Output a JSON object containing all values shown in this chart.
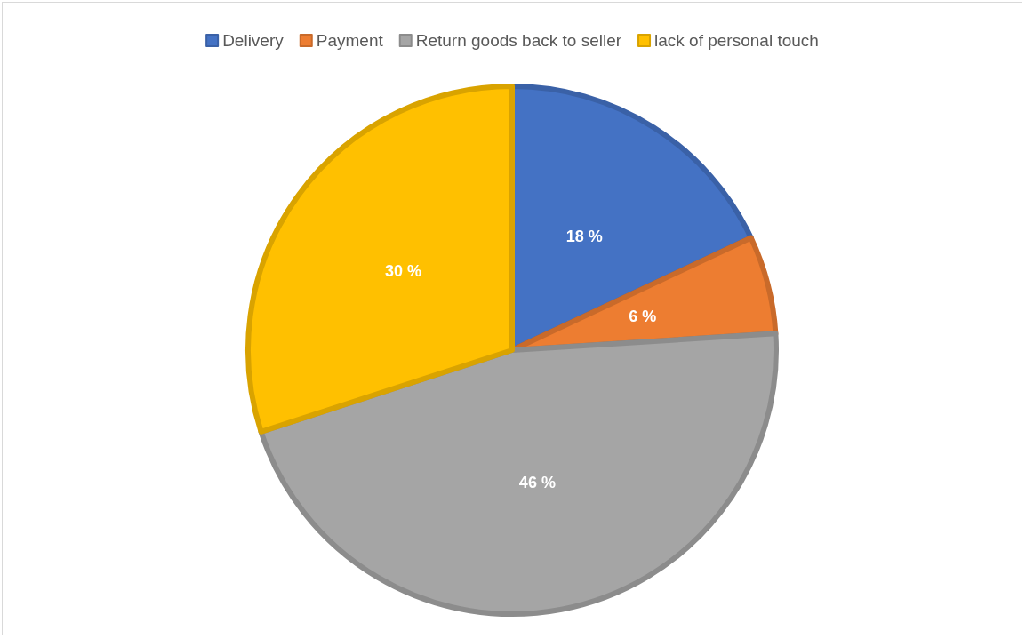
{
  "chart_data": {
    "type": "pie",
    "categories": [
      "Delivery",
      "Payment",
      "Return goods back to seller",
      "lack of personal touch"
    ],
    "values": [
      18,
      6,
      46,
      30
    ],
    "colors": [
      "#4472c4",
      "#ed7d31",
      "#a5a5a5",
      "#ffc000"
    ],
    "value_labels": [
      "18 %",
      "6 %",
      "46 %",
      "30 %"
    ],
    "legend": "top"
  }
}
